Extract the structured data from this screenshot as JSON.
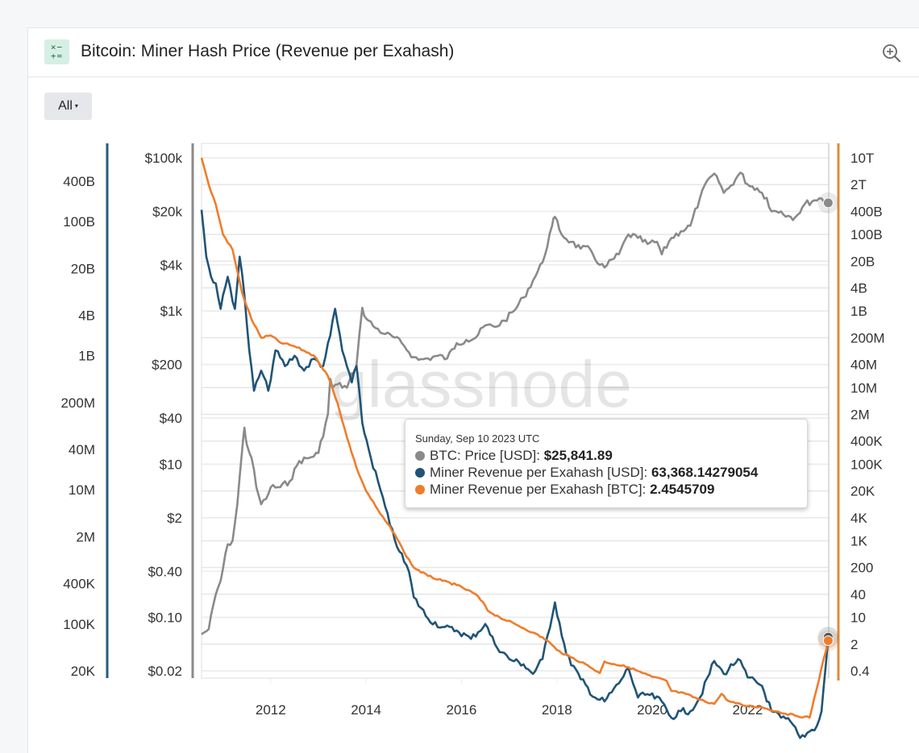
{
  "header": {
    "icon": "calculator-icon",
    "title": "Bitcoin: Miner Hash Price (Revenue per Exahash)",
    "zoom_icon": "zoom-in-icon"
  },
  "controls": {
    "range_label": "All",
    "range_caret": "▾"
  },
  "watermark": "glassnode",
  "colors": {
    "price": "#8a8a8a",
    "rev_usd": "#1f5476",
    "rev_btc": "#ef7d2b",
    "axis_usd": "#2a5a78",
    "axis_btc": "#e08a3a",
    "grid": "#e6e6e6"
  },
  "tooltip": {
    "date": "Sunday, Sep 10 2023 UTC",
    "rows": [
      {
        "label": "BTC: Price [USD]: ",
        "value": "$25,841.89",
        "color": "#8a8a8a"
      },
      {
        "label": "Miner Revenue per Exahash [USD]: ",
        "value": "63,368.14279054",
        "color": "#1f5476"
      },
      {
        "label": "Miner Revenue per Exahash [BTC]: ",
        "value": "2.4545709",
        "color": "#ef7d2b"
      }
    ]
  },
  "chart_data": {
    "type": "line",
    "title": "Bitcoin: Miner Hash Price (Revenue per Exahash)",
    "xlabel": "",
    "x_ticks": [
      "2012",
      "2014",
      "2016",
      "2018",
      "2020",
      "2022"
    ],
    "x_range": [
      2010.55,
      2023.7
    ],
    "grid": true,
    "legend": "tooltip",
    "axes": [
      {
        "id": "usd_rev",
        "position": "far-left",
        "scale": "log",
        "ticks": [
          "400B",
          "100B",
          "20B",
          "4B",
          "1B",
          "200M",
          "40M",
          "10M",
          "2M",
          "400K",
          "100K",
          "20K"
        ],
        "tick_values": [
          400000000000.0,
          100000000000.0,
          20000000000.0,
          4000000000.0,
          1000000000.0,
          200000000.0,
          40000000.0,
          10000000.0,
          2000000.0,
          400000.0,
          100000.0,
          20000.0
        ]
      },
      {
        "id": "price",
        "position": "left",
        "scale": "log",
        "ticks": [
          "$100k",
          "$20k",
          "$4k",
          "$1k",
          "$200",
          "$40",
          "$10",
          "$2",
          "$0.40",
          "$0.10",
          "$0.02"
        ],
        "tick_values": [
          100000,
          20000,
          4000,
          1000,
          200,
          40,
          10,
          2,
          0.4,
          0.1,
          0.02
        ]
      },
      {
        "id": "btc_rev",
        "position": "right",
        "scale": "log",
        "ticks": [
          "10T",
          "2T",
          "400B",
          "100B",
          "20B",
          "4B",
          "1B",
          "200M",
          "40M",
          "10M",
          "2M",
          "400K",
          "100K",
          "20K",
          "4K",
          "1K",
          "200",
          "40",
          "10",
          "2",
          "0.4"
        ],
        "tick_values": [
          10000000000000.0,
          2000000000000.0,
          400000000000.0,
          100000000000.0,
          20000000000.0,
          4000000000.0,
          1000000000.0,
          200000000.0,
          40000000.0,
          10000000.0,
          2000000.0,
          400000.0,
          100000.0,
          20000.0,
          4000.0,
          1000.0,
          200,
          40,
          10,
          2,
          0.4
        ]
      }
    ],
    "series": [
      {
        "name": "BTC: Price [USD]",
        "axis": "price",
        "x": [
          2010.55,
          2010.7,
          2010.85,
          2010.95,
          2011.1,
          2011.2,
          2011.3,
          2011.4,
          2011.45,
          2011.5,
          2011.6,
          2011.7,
          2011.8,
          2011.9,
          2012.0,
          2012.2,
          2012.4,
          2012.6,
          2012.8,
          2013.0,
          2013.2,
          2013.25,
          2013.3,
          2013.4,
          2013.6,
          2013.8,
          2013.92,
          2014.0,
          2014.2,
          2014.4,
          2014.6,
          2014.8,
          2015.0,
          2015.1,
          2015.3,
          2015.5,
          2015.7,
          2015.9,
          2016.1,
          2016.3,
          2016.5,
          2016.7,
          2016.9,
          2017.1,
          2017.3,
          2017.5,
          2017.7,
          2017.9,
          2017.96,
          2018.1,
          2018.3,
          2018.5,
          2018.7,
          2018.9,
          2019.0,
          2019.3,
          2019.5,
          2019.7,
          2019.9,
          2020.1,
          2020.2,
          2020.4,
          2020.6,
          2020.8,
          2021.0,
          2021.2,
          2021.35,
          2021.5,
          2021.6,
          2021.85,
          2022.0,
          2022.2,
          2022.4,
          2022.5,
          2022.7,
          2022.9,
          2023.0,
          2023.2,
          2023.4,
          2023.55,
          2023.69
        ],
        "values": [
          0.06,
          0.07,
          0.2,
          0.3,
          0.9,
          1.0,
          3.0,
          15,
          30,
          18,
          12,
          5,
          3,
          3.5,
          5,
          5,
          6,
          11,
          12,
          14,
          45,
          130,
          100,
          110,
          100,
          200,
          1100,
          800,
          600,
          500,
          450,
          350,
          250,
          230,
          240,
          260,
          240,
          380,
          420,
          450,
          650,
          620,
          750,
          1000,
          1500,
          2500,
          4300,
          13000,
          17000,
          10000,
          8000,
          6500,
          6400,
          4000,
          3700,
          5500,
          10000,
          9000,
          7500,
          8000,
          5500,
          9000,
          11000,
          13000,
          30000,
          55000,
          58000,
          35000,
          40000,
          64000,
          45000,
          40000,
          30000,
          20000,
          20000,
          17000,
          16800,
          25000,
          28000,
          29500,
          25841.89
        ]
      },
      {
        "name": "Miner Revenue per Exahash [USD]",
        "axis": "usd_rev",
        "x": [
          2010.55,
          2010.65,
          2010.75,
          2010.85,
          2010.95,
          2011.1,
          2011.25,
          2011.35,
          2011.45,
          2011.55,
          2011.65,
          2011.8,
          2011.95,
          2012.1,
          2012.3,
          2012.5,
          2012.7,
          2012.9,
          2013.1,
          2013.25,
          2013.35,
          2013.5,
          2013.7,
          2013.8,
          2013.92,
          2014.1,
          2014.3,
          2014.5,
          2014.7,
          2014.9,
          2015.0,
          2015.3,
          2015.6,
          2015.9,
          2016.2,
          2016.5,
          2016.7,
          2017.0,
          2017.3,
          2017.5,
          2017.7,
          2017.96,
          2018.2,
          2018.5,
          2018.8,
          2019.0,
          2019.3,
          2019.5,
          2019.7,
          2019.9,
          2020.2,
          2020.4,
          2020.6,
          2020.8,
          2021.0,
          2021.3,
          2021.5,
          2021.8,
          2022.0,
          2022.3,
          2022.5,
          2022.7,
          2022.9,
          2023.1,
          2023.3,
          2023.45,
          2023.55,
          2023.69
        ],
        "values": [
          150000000000.0,
          30000000000.0,
          15000000000.0,
          12000000000.0,
          5000000000.0,
          15000000000.0,
          5000000000.0,
          30000000000.0,
          8000000000.0,
          1200000000.0,
          300000000.0,
          600000000.0,
          300000000.0,
          1200000000.0,
          700000000.0,
          1000000000.0,
          600000000.0,
          900000000.0,
          700000000.0,
          2000000000.0,
          5000000000.0,
          1200000000.0,
          400000000.0,
          700000000.0,
          100000000.0,
          30000000.0,
          10000000.0,
          3000000.0,
          1200000.0,
          600000.0,
          250000.0,
          120000.0,
          90000.0,
          80000.0,
          60000.0,
          100000.0,
          50000.0,
          30000.0,
          25000.0,
          18000.0,
          30000.0,
          210000.0,
          35000.0,
          15000.0,
          8000.0,
          7000.0,
          13000.0,
          22000.0,
          8000.0,
          9000.0,
          7000.0,
          4000.0,
          5000.0,
          5000.0,
          8000.0,
          28000.0,
          18000.0,
          30000.0,
          16000.0,
          12000.0,
          5000.0,
          4000.0,
          3500.0,
          2000.0,
          2500.0,
          3000.0,
          5000.0,
          63368.14
        ]
      },
      {
        "name": "Miner Revenue per Exahash [BTC]",
        "axis": "btc_rev",
        "x": [
          2010.55,
          2010.7,
          2010.85,
          2011.0,
          2011.2,
          2011.4,
          2011.6,
          2011.8,
          2012.0,
          2012.2,
          2012.5,
          2012.8,
          2012.95,
          2013.2,
          2013.4,
          2013.6,
          2013.8,
          2014.0,
          2014.3,
          2014.6,
          2014.8,
          2015.0,
          2015.3,
          2015.6,
          2015.9,
          2016.3,
          2016.5,
          2016.55,
          2016.8,
          2017.2,
          2017.5,
          2017.8,
          2018.0,
          2018.3,
          2018.6,
          2018.9,
          2019.0,
          2019.2,
          2019.5,
          2019.8,
          2020.0,
          2020.3,
          2020.4,
          2020.7,
          2021.0,
          2021.3,
          2021.45,
          2021.6,
          2021.9,
          2022.3,
          2022.6,
          2023.0,
          2023.3,
          2023.69
        ],
        "values": [
          10000000000000.0,
          2000000000000.0,
          600000000000.0,
          100000000000.0,
          40000000000.0,
          3000000000.0,
          600000000.0,
          200000000.0,
          230000000.0,
          150000000.0,
          120000000.0,
          80000000.0,
          60000000.0,
          20000000.0,
          4000000.0,
          500000.0,
          80000.0,
          20000.0,
          5000.0,
          1500.0,
          500,
          200,
          120,
          90,
          70,
          40,
          20,
          15,
          10,
          6,
          4,
          2.5,
          1.4,
          0.9,
          0.6,
          0.35,
          0.7,
          0.6,
          0.5,
          0.35,
          0.28,
          0.22,
          0.12,
          0.1,
          0.07,
          0.055,
          0.1,
          0.065,
          0.05,
          0.045,
          0.035,
          0.027,
          0.024,
          2.4545709
        ]
      }
    ],
    "hover_date": "Sunday, Sep 10 2023 UTC"
  }
}
